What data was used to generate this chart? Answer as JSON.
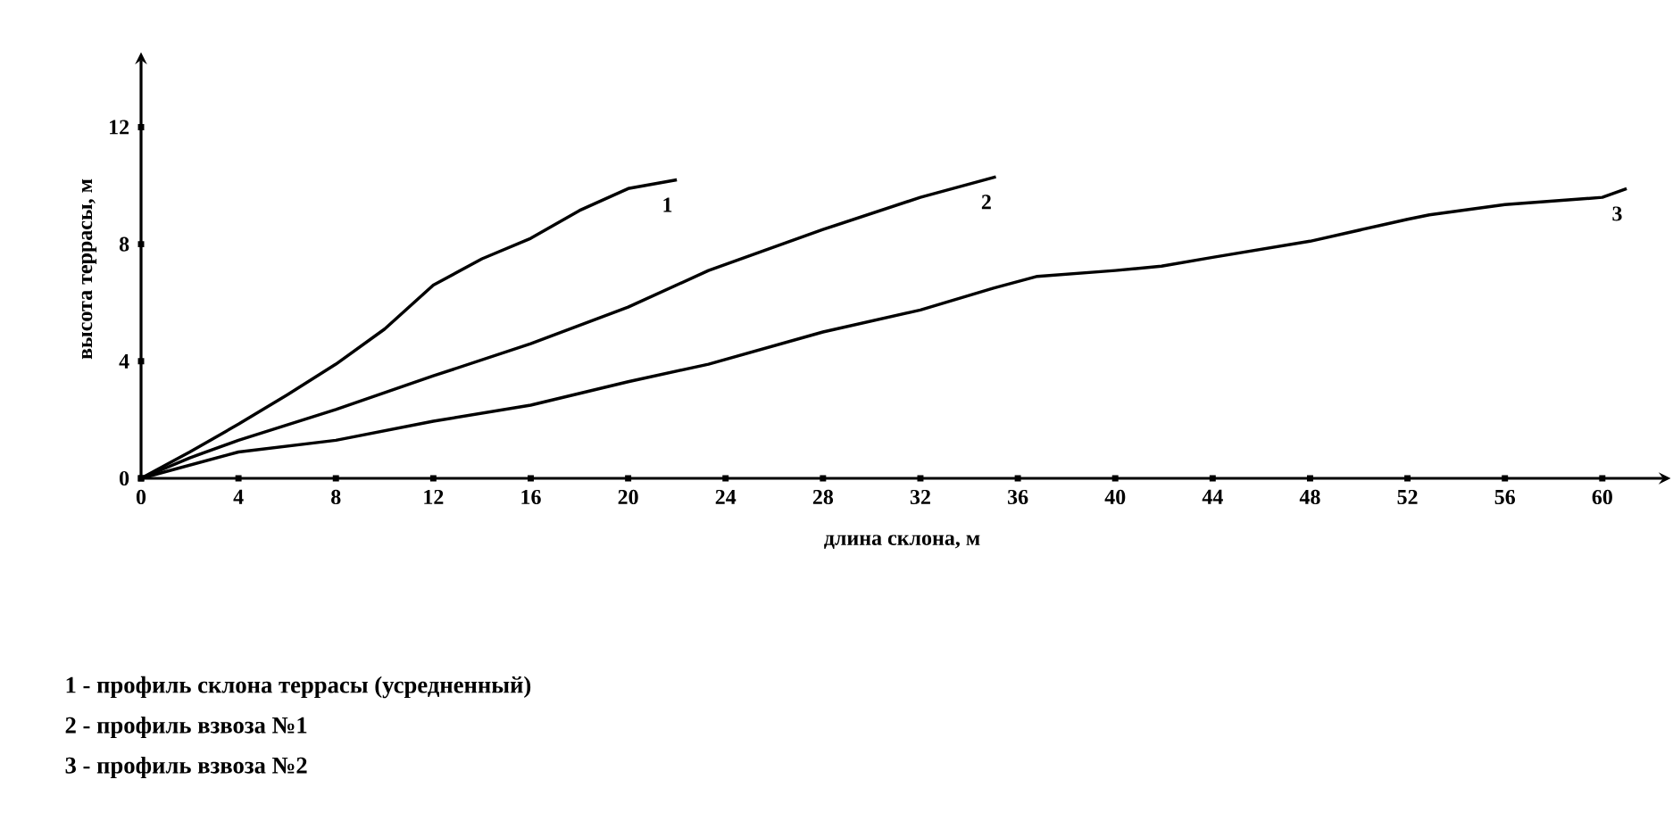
{
  "chart_data": {
    "type": "line",
    "xlabel": "длина склона, м",
    "ylabel": "высота террасы, м",
    "xlim": [
      0,
      62.5
    ],
    "ylim": [
      0,
      14.3
    ],
    "xticks": [
      0,
      4,
      8,
      12,
      16,
      20,
      24,
      28,
      32,
      36,
      40,
      44,
      48,
      52,
      56,
      60
    ],
    "yticks": [
      0,
      4,
      8,
      12
    ],
    "grid": false,
    "legend": false,
    "marker": "none",
    "line_style": "solid",
    "series": [
      {
        "name": "1",
        "color": "#000000",
        "x": [
          0,
          2,
          4,
          6,
          8,
          10,
          12,
          14,
          16,
          18,
          20,
          22
        ],
        "values": [
          0,
          0.9,
          1.85,
          2.85,
          3.9,
          5.1,
          6.6,
          7.5,
          8.2,
          9.15,
          9.9,
          10.2
        ]
      },
      {
        "name": "2",
        "color": "#000000",
        "x": [
          0,
          2,
          4,
          8,
          12,
          16,
          20,
          23.3,
          28,
          32,
          35.1
        ],
        "values": [
          0,
          0.7,
          1.3,
          2.35,
          3.5,
          4.6,
          5.85,
          7.1,
          8.5,
          9.6,
          10.3
        ]
      },
      {
        "name": "3",
        "color": "#000000",
        "x": [
          0,
          4,
          8,
          12,
          16,
          20,
          23.3,
          28,
          32,
          35,
          36.8,
          40,
          41.9,
          44,
          48,
          52,
          52.9,
          56,
          60,
          61
        ],
        "values": [
          0,
          0.9,
          1.3,
          1.95,
          2.5,
          3.3,
          3.9,
          5.0,
          5.75,
          6.5,
          6.9,
          7.1,
          7.25,
          7.55,
          8.1,
          8.85,
          9.0,
          9.35,
          9.6,
          9.9
        ]
      }
    ],
    "annotations": [
      "1 - профиль склона террасы    (усредненный)",
      "2 - профиль взвоза №1",
      "3 - профиль взвоза №2"
    ]
  }
}
